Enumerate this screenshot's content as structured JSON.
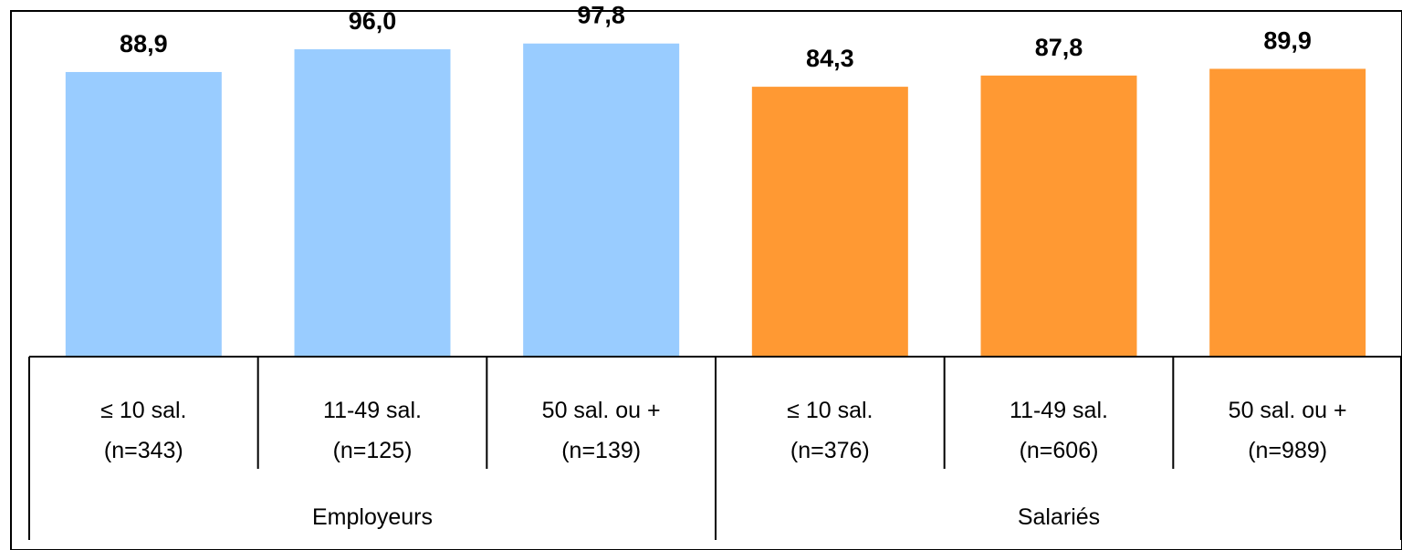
{
  "chart_data": {
    "type": "bar",
    "groups": [
      "Employeurs",
      "Salariés"
    ],
    "categories": [
      {
        "group": "Employeurs",
        "line1": "≤ 10 sal.",
        "line2": "(n=343)"
      },
      {
        "group": "Employeurs",
        "line1": "11-49 sal.",
        "line2": "(n=125)"
      },
      {
        "group": "Employeurs",
        "line1": "50 sal. ou +",
        "line2": "(n=139)"
      },
      {
        "group": "Salariés",
        "line1": "≤ 10 sal.",
        "line2": "(n=376)"
      },
      {
        "group": "Salariés",
        "line1": "11-49 sal.",
        "line2": "(n=606)"
      },
      {
        "group": "Salariés",
        "line1": "50 sal. ou +",
        "line2": "(n=989)"
      }
    ],
    "values": [
      88.9,
      96.0,
      97.8,
      84.3,
      87.8,
      89.9
    ],
    "value_labels": [
      "88,9",
      "96,0",
      "97,8",
      "84,3",
      "87,8",
      "89,9"
    ],
    "group_colors": {
      "Employeurs": "#99ccff",
      "Salariés": "#ff9933"
    },
    "ylim": [
      0,
      100
    ],
    "grid": false,
    "legend": "none"
  }
}
